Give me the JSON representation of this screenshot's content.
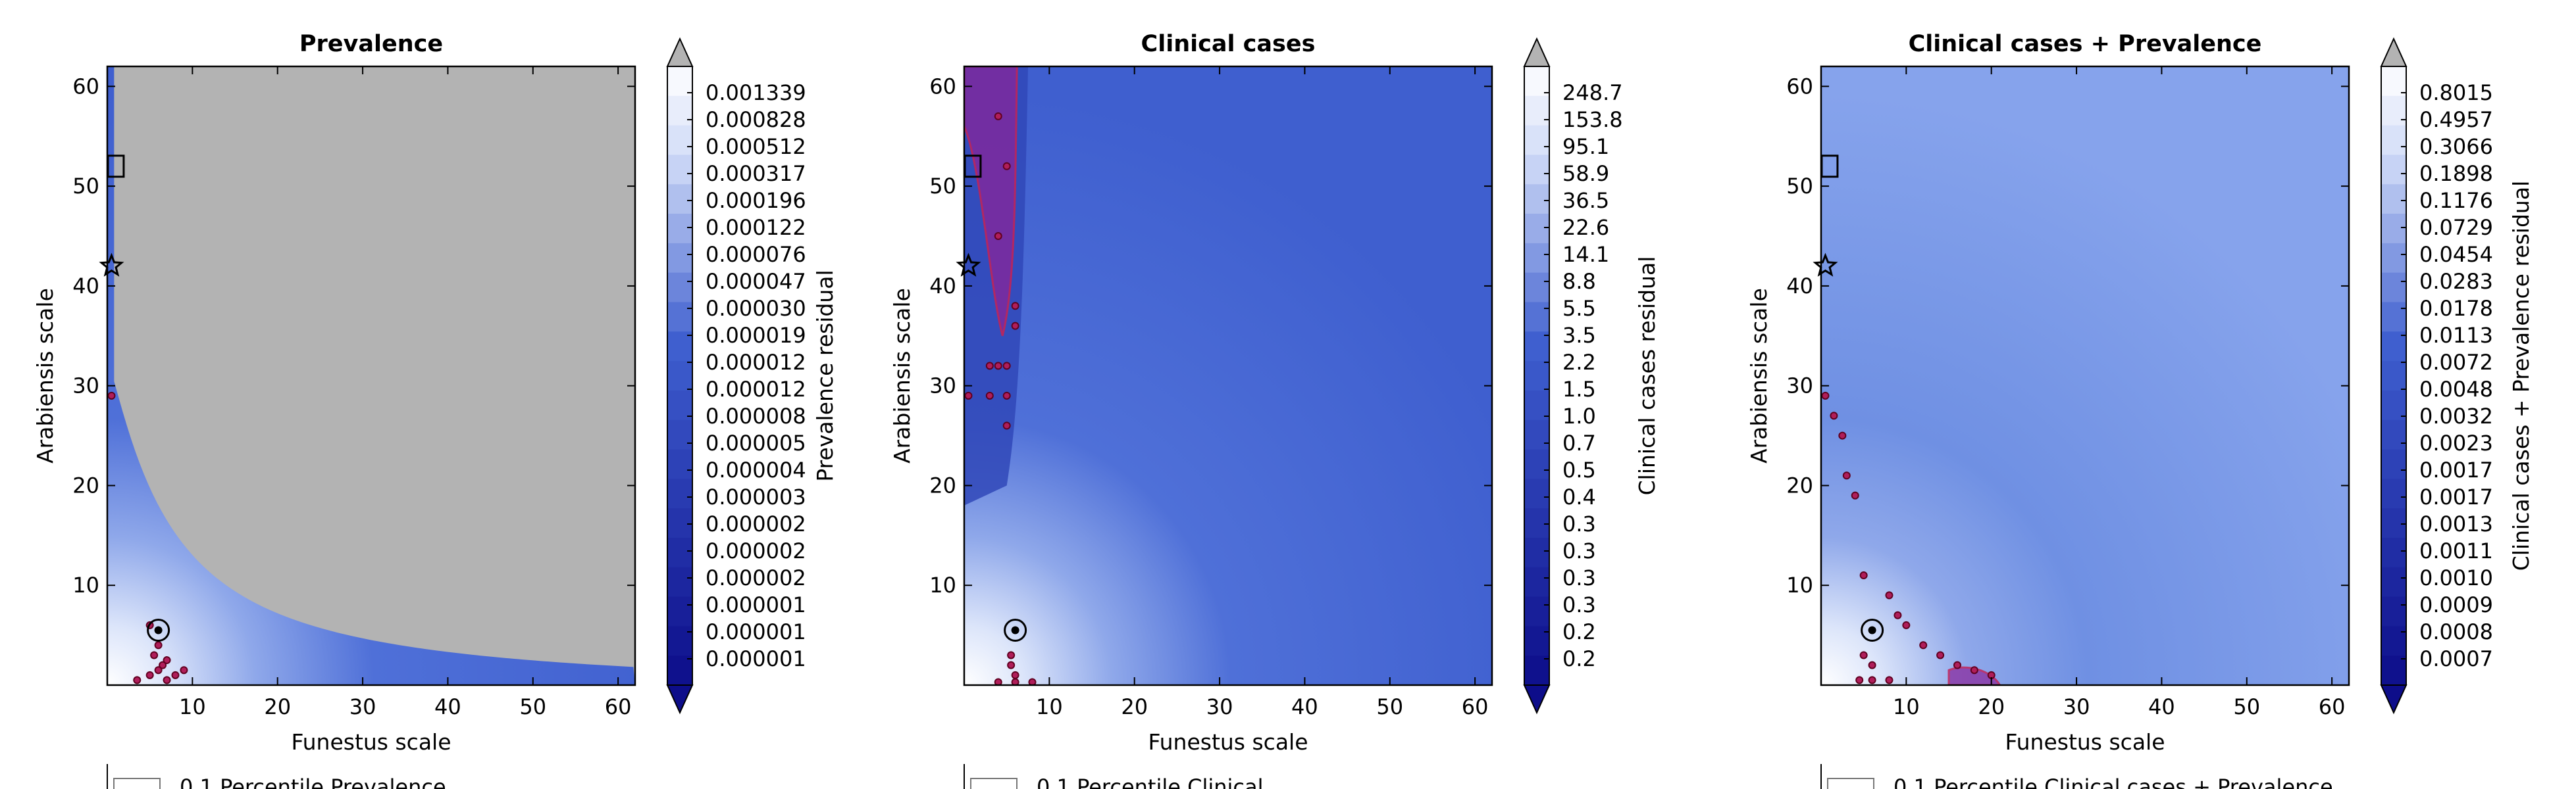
{
  "figure": {
    "xlabel": "Funestus scale",
    "ylabel": "Arabiensis scale",
    "xlim": [
      0,
      62
    ],
    "ylim": [
      0,
      62
    ],
    "ticks": [
      10,
      20,
      30,
      40,
      50,
      60
    ]
  },
  "chart_data": [
    {
      "type": "heatmap",
      "title": "Prevalence",
      "colorbar_label": "Prevalence residual",
      "colorbar_ticks": [
        "0.001339",
        "0.000828",
        "0.000512",
        "0.000317",
        "0.000196",
        "0.000122",
        "0.000076",
        "0.000047",
        "0.000030",
        "0.000019",
        "0.000012",
        "0.000012",
        "0.000008",
        "0.000005",
        "0.000004",
        "0.000003",
        "0.000002",
        "0.000002",
        "0.000002",
        "0.000001",
        "0.000001",
        "0.000001"
      ],
      "legend_partial_text": "0.1 Percentile Prevalence",
      "masked_color": "#b3b3b3",
      "markers": {
        "square": [
          1,
          52
        ],
        "star": [
          0.5,
          42
        ],
        "circled_point": [
          6,
          5.5
        ]
      },
      "low_residual_points": [
        [
          0.5,
          29
        ],
        [
          6,
          4
        ],
        [
          5.5,
          3
        ],
        [
          6.5,
          2
        ],
        [
          5,
          1
        ],
        [
          3.5,
          0.5
        ],
        [
          7,
          0.5
        ],
        [
          6,
          1.5
        ],
        [
          8,
          1
        ],
        [
          9,
          1.5
        ],
        [
          7,
          2.5
        ],
        [
          5,
          6
        ]
      ]
    },
    {
      "type": "heatmap",
      "title": "Clinical cases",
      "colorbar_label": "Clinical cases residual",
      "colorbar_ticks": [
        "248.7",
        "153.8",
        "95.1",
        "58.9",
        "36.5",
        "22.6",
        "14.1",
        "8.8",
        "5.5",
        "3.5",
        "2.2",
        "1.5",
        "1.0",
        "0.7",
        "0.5",
        "0.4",
        "0.3",
        "0.3",
        "0.3",
        "0.3",
        "0.2",
        "0.2"
      ],
      "legend_partial_text": "0.1 Percentile Clinical",
      "markers": {
        "square": [
          1,
          52
        ],
        "star": [
          0.5,
          42
        ],
        "circled_point": [
          6,
          5.5
        ]
      },
      "low_residual_points": [
        [
          0.5,
          29
        ],
        [
          3,
          32
        ],
        [
          4,
          32
        ],
        [
          3,
          29
        ],
        [
          5,
          26
        ],
        [
          5,
          29
        ],
        [
          5,
          32
        ],
        [
          5.5,
          3
        ],
        [
          5.5,
          2
        ],
        [
          6,
          1
        ],
        [
          6,
          0.3
        ],
        [
          4,
          0.3
        ],
        [
          8,
          0.3
        ],
        [
          6,
          36
        ],
        [
          6,
          38
        ],
        [
          4,
          45
        ],
        [
          5,
          52
        ],
        [
          4,
          57
        ]
      ]
    },
    {
      "type": "heatmap",
      "title": "Clinical cases + Prevalence",
      "colorbar_label": "Clinical cases + Prevalence residual",
      "colorbar_ticks": [
        "0.8015",
        "0.4957",
        "0.3066",
        "0.1898",
        "0.1176",
        "0.0729",
        "0.0454",
        "0.0283",
        "0.0178",
        "0.0113",
        "0.0072",
        "0.0048",
        "0.0032",
        "0.0023",
        "0.0017",
        "0.0017",
        "0.0013",
        "0.0011",
        "0.0010",
        "0.0009",
        "0.0008",
        "0.0007"
      ],
      "legend_partial_text": "0.1 Percentile Clinical cases + Prevalence",
      "markers": {
        "square": [
          1,
          52
        ],
        "star": [
          0.5,
          42
        ],
        "circled_point": [
          6,
          5.5
        ]
      },
      "low_residual_points": [
        [
          0.5,
          29
        ],
        [
          1.5,
          27
        ],
        [
          2.5,
          25
        ],
        [
          3,
          21
        ],
        [
          4,
          19
        ],
        [
          5,
          11
        ],
        [
          8,
          9
        ],
        [
          9,
          7
        ],
        [
          10,
          6
        ],
        [
          12,
          4
        ],
        [
          14,
          3
        ],
        [
          16,
          2
        ],
        [
          18,
          1.5
        ],
        [
          20,
          1
        ],
        [
          4.5,
          0.5
        ],
        [
          6,
          0.5
        ],
        [
          8,
          0.5
        ],
        [
          6,
          2
        ],
        [
          5,
          3
        ]
      ]
    }
  ],
  "colors": {
    "map_dark": "#0d0d8a",
    "map_mid": "#3f5fcf",
    "map_light": "#cfdaf7",
    "low_residual": "#b01e5a",
    "extend_top": "#b3b3b3"
  }
}
